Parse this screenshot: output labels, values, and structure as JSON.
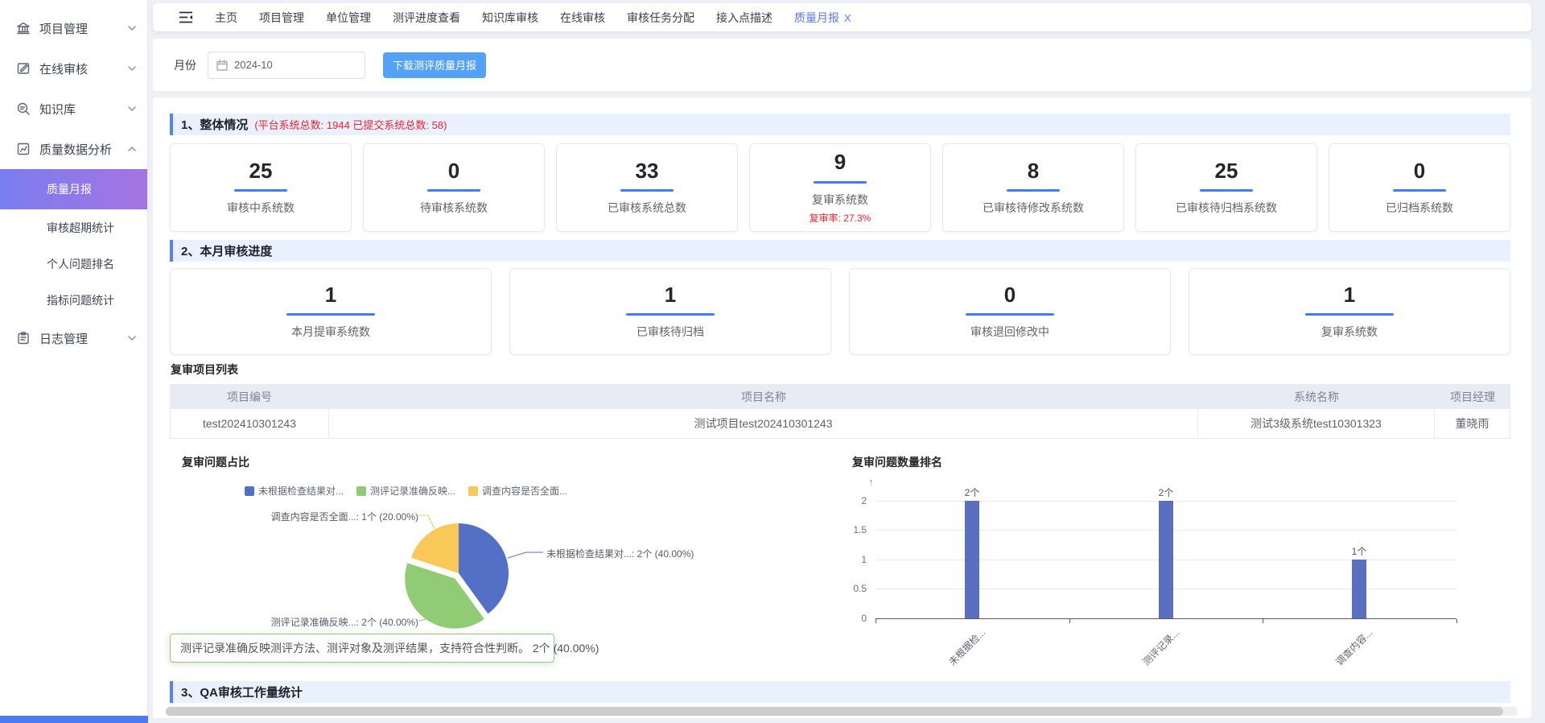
{
  "sidebar": {
    "items": [
      {
        "label": "项目管理"
      },
      {
        "label": "在线审核"
      },
      {
        "label": "知识库"
      },
      {
        "label": "质量数据分析"
      },
      {
        "label": "日志管理"
      }
    ],
    "sub_items": [
      {
        "label": "质量月报",
        "active": true
      },
      {
        "label": "审核超期统计"
      },
      {
        "label": "个人问题排名"
      },
      {
        "label": "指标问题统计"
      }
    ]
  },
  "topnav": {
    "tabs": [
      {
        "label": "主页"
      },
      {
        "label": "项目管理"
      },
      {
        "label": "单位管理"
      },
      {
        "label": "测评进度查看"
      },
      {
        "label": "知识库审核"
      },
      {
        "label": "在线审核"
      },
      {
        "label": "审核任务分配"
      },
      {
        "label": "接入点描述"
      },
      {
        "label": "质量月报",
        "close_label": "X",
        "active": true
      }
    ]
  },
  "filter": {
    "label": "月份",
    "value": "2024-10",
    "button_label": "下载测评质量月报"
  },
  "sections": {
    "s1": {
      "title": "1、整体情况",
      "subtitle": "(平台系统总数: 1944  已提交系统总数: 58)"
    },
    "s2": {
      "title": "2、本月审核进度"
    },
    "s3": {
      "title": "3、QA审核工作量统计"
    }
  },
  "overview_cards": [
    {
      "value": "25",
      "label": "审核中系统数"
    },
    {
      "value": "0",
      "label": "待审核系统数"
    },
    {
      "value": "33",
      "label": "已审核系统总数"
    },
    {
      "value": "9",
      "label": "复审系统数",
      "sub": "复审率: 27.3%"
    },
    {
      "value": "8",
      "label": "已审核待修改系统数"
    },
    {
      "value": "25",
      "label": "已审核待归档系统数"
    },
    {
      "value": "0",
      "label": "已归档系统数"
    }
  ],
  "month_cards": [
    {
      "value": "1",
      "label": "本月提审系统数"
    },
    {
      "value": "1",
      "label": "已审核待归档"
    },
    {
      "value": "0",
      "label": "审核退回修改中"
    },
    {
      "value": "1",
      "label": "复审系统数"
    }
  ],
  "review_table": {
    "title": "复审项目列表",
    "headers": [
      "项目编号",
      "项目名称",
      "系统名称",
      "项目经理"
    ],
    "rows": [
      [
        "test202410301243",
        "测试项目test202410301243",
        "测试3级系统test10301323",
        "董晓雨"
      ]
    ]
  },
  "chart_data": [
    {
      "type": "pie",
      "title": "复审问题占比",
      "legend_position": "top",
      "legend": [
        "未根据检查结果对...",
        "测评记录准确反映...",
        "调查内容是否全面..."
      ],
      "series": [
        {
          "name": "未根据检查结果对...",
          "value": 2,
          "percent": "40.00%",
          "color": "#5470c6",
          "callout": "未根据检查结果对...: 2个  (40.00%)"
        },
        {
          "name": "测评记录准确反映...",
          "value": 2,
          "percent": "40.00%",
          "color": "#91cc75",
          "callout": "测评记录准确反映...: 2个  (40.00%)",
          "selected": true
        },
        {
          "name": "调查内容是否全面...",
          "value": 1,
          "percent": "20.00%",
          "color": "#fac858",
          "callout": "调查内容是否全面...: 1个  (20.00%)"
        }
      ],
      "tooltip": "测评记录准确反映测评方法、测评对象及测评结果，支持符合性判断。 2个 (40.00%)"
    },
    {
      "type": "bar",
      "title": "复审问题数量排名",
      "categories": [
        "未根据检...",
        "测评记录...",
        "调查内容..."
      ],
      "values": [
        2,
        2,
        1
      ],
      "bar_labels": [
        "2个",
        "2个",
        "1个"
      ],
      "ylim": [
        0,
        2
      ],
      "yticks": [
        "2",
        "1.5",
        "1",
        "0.5",
        "0"
      ],
      "axis_arrow": "↑",
      "bar_color": "#5b6fc0",
      "grid": true
    }
  ]
}
